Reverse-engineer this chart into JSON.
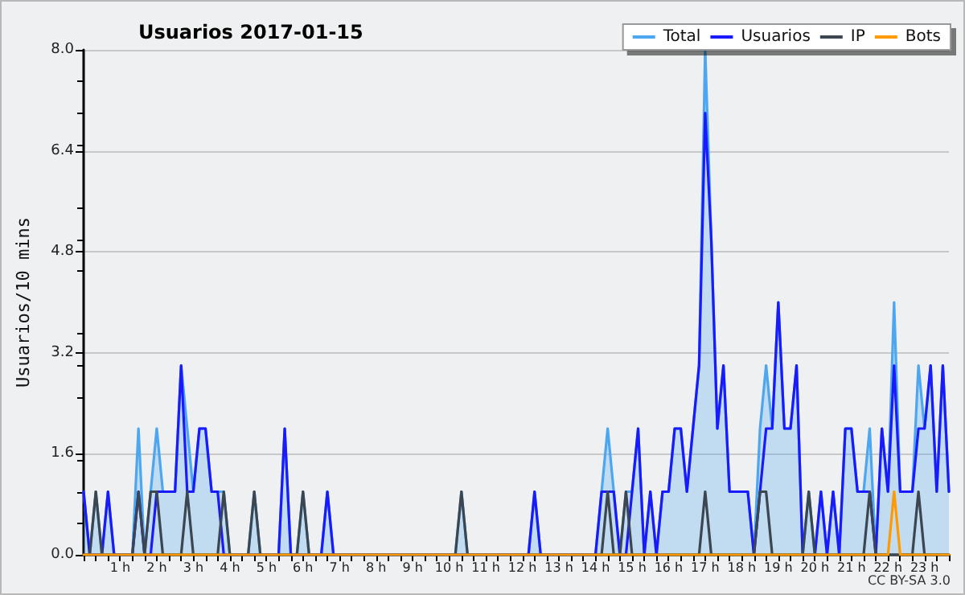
{
  "chart_data": {
    "type": "line",
    "title": "Usuarios 2017-01-15",
    "ylabel": "Usuarios/10 mins",
    "categories": [
      null,
      null,
      null,
      null,
      null,
      null,
      "1 h",
      null,
      null,
      null,
      null,
      null,
      "2 h",
      null,
      null,
      null,
      null,
      null,
      "3 h",
      null,
      null,
      null,
      null,
      null,
      "4 h",
      null,
      null,
      null,
      null,
      null,
      "5 h",
      null,
      null,
      null,
      null,
      null,
      "6 h",
      null,
      null,
      null,
      null,
      null,
      "7 h",
      null,
      null,
      null,
      null,
      null,
      "8 h",
      null,
      null,
      null,
      null,
      null,
      "9 h",
      null,
      null,
      null,
      null,
      null,
      "10 h",
      null,
      null,
      null,
      null,
      null,
      "11 h",
      null,
      null,
      null,
      null,
      null,
      "12 h",
      null,
      null,
      null,
      null,
      null,
      "13 h",
      null,
      null,
      null,
      null,
      null,
      "14 h",
      null,
      null,
      null,
      null,
      null,
      "15 h",
      null,
      null,
      null,
      null,
      null,
      "16 h",
      null,
      null,
      null,
      null,
      null,
      "17 h",
      null,
      null,
      null,
      null,
      null,
      "18 h",
      null,
      null,
      null,
      null,
      null,
      "19 h",
      null,
      null,
      null,
      null,
      null,
      "20 h",
      null,
      null,
      null,
      null,
      null,
      "21 h",
      null,
      null,
      null,
      null,
      null,
      "22 h",
      null,
      null,
      null,
      null,
      null,
      "23 h",
      null,
      null,
      null,
      null
    ],
    "series": [
      {
        "name": "Total",
        "type": "area",
        "color": "#4da6f0",
        "values": [
          1,
          0,
          1,
          0,
          1,
          0,
          0,
          0,
          0,
          2,
          0,
          1,
          2,
          1,
          1,
          1,
          3,
          2,
          1,
          2,
          2,
          1,
          1,
          1,
          0,
          0,
          0,
          0,
          1,
          0,
          0,
          0,
          0,
          2,
          0,
          0,
          1,
          0,
          0,
          0,
          1,
          0,
          0,
          0,
          0,
          0,
          0,
          0,
          0,
          0,
          0,
          0,
          0,
          0,
          0,
          0,
          0,
          0,
          0,
          0,
          0,
          0,
          1,
          0,
          0,
          0,
          0,
          0,
          0,
          0,
          0,
          0,
          0,
          0,
          1,
          0,
          0,
          0,
          0,
          0,
          0,
          0,
          0,
          0,
          0,
          1,
          2,
          1,
          0,
          1,
          1,
          2,
          0,
          1,
          0,
          1,
          1,
          2,
          2,
          1,
          2,
          3,
          8,
          5,
          2,
          3,
          1,
          1,
          1,
          1,
          0,
          2,
          3,
          2,
          4,
          2,
          2,
          3,
          0,
          1,
          0,
          1,
          0,
          1,
          0,
          2,
          2,
          1,
          1,
          2,
          0,
          2,
          1,
          4,
          1,
          1,
          1,
          3,
          2,
          3,
          1,
          3,
          1
        ]
      },
      {
        "name": "Usuarios",
        "color": "#1a1aff",
        "values": [
          1,
          0,
          0,
          0,
          1,
          0,
          0,
          0,
          0,
          1,
          0,
          0,
          1,
          1,
          1,
          1,
          3,
          1,
          1,
          2,
          2,
          1,
          1,
          0,
          0,
          0,
          0,
          0,
          0,
          0,
          0,
          0,
          0,
          2,
          0,
          0,
          0,
          0,
          0,
          0,
          1,
          0,
          0,
          0,
          0,
          0,
          0,
          0,
          0,
          0,
          0,
          0,
          0,
          0,
          0,
          0,
          0,
          0,
          0,
          0,
          0,
          0,
          0,
          0,
          0,
          0,
          0,
          0,
          0,
          0,
          0,
          0,
          0,
          0,
          1,
          0,
          0,
          0,
          0,
          0,
          0,
          0,
          0,
          0,
          0,
          1,
          1,
          1,
          0,
          0,
          1,
          2,
          0,
          1,
          0,
          1,
          1,
          2,
          2,
          1,
          2,
          3,
          7,
          5,
          2,
          3,
          1,
          1,
          1,
          1,
          0,
          1,
          2,
          2,
          4,
          2,
          2,
          3,
          0,
          0,
          0,
          1,
          0,
          1,
          0,
          2,
          2,
          1,
          1,
          1,
          0,
          2,
          1,
          3,
          1,
          1,
          1,
          2,
          2,
          3,
          1,
          3,
          1
        ]
      },
      {
        "name": "IP",
        "color": "#3c4650",
        "values": [
          0,
          0,
          1,
          0,
          0,
          0,
          0,
          0,
          0,
          1,
          0,
          1,
          1,
          0,
          0,
          0,
          0,
          1,
          0,
          0,
          0,
          0,
          0,
          1,
          0,
          0,
          0,
          0,
          1,
          0,
          0,
          0,
          0,
          0,
          0,
          0,
          1,
          0,
          0,
          0,
          0,
          0,
          0,
          0,
          0,
          0,
          0,
          0,
          0,
          0,
          0,
          0,
          0,
          0,
          0,
          0,
          0,
          0,
          0,
          0,
          0,
          0,
          1,
          0,
          0,
          0,
          0,
          0,
          0,
          0,
          0,
          0,
          0,
          0,
          0,
          0,
          0,
          0,
          0,
          0,
          0,
          0,
          0,
          0,
          0,
          0,
          1,
          0,
          0,
          1,
          0,
          0,
          0,
          0,
          0,
          0,
          0,
          0,
          0,
          0,
          0,
          0,
          1,
          0,
          0,
          0,
          0,
          0,
          0,
          0,
          0,
          1,
          1,
          0,
          0,
          0,
          0,
          0,
          0,
          1,
          0,
          0,
          0,
          0,
          0,
          0,
          0,
          0,
          0,
          1,
          0,
          0,
          0,
          0,
          0,
          0,
          0,
          1,
          0,
          0,
          0,
          0,
          0
        ]
      },
      {
        "name": "Bots",
        "color": "#ff9900",
        "values": [
          0,
          0,
          0,
          0,
          0,
          0,
          0,
          0,
          0,
          0,
          0,
          0,
          0,
          0,
          0,
          0,
          0,
          0,
          0,
          0,
          0,
          0,
          0,
          0,
          0,
          0,
          0,
          0,
          0,
          0,
          0,
          0,
          0,
          0,
          0,
          0,
          0,
          0,
          0,
          0,
          0,
          0,
          0,
          0,
          0,
          0,
          0,
          0,
          0,
          0,
          0,
          0,
          0,
          0,
          0,
          0,
          0,
          0,
          0,
          0,
          0,
          0,
          0,
          0,
          0,
          0,
          0,
          0,
          0,
          0,
          0,
          0,
          0,
          0,
          0,
          0,
          0,
          0,
          0,
          0,
          0,
          0,
          0,
          0,
          0,
          0,
          0,
          0,
          0,
          0,
          0,
          0,
          0,
          0,
          0,
          0,
          0,
          0,
          0,
          0,
          0,
          0,
          0,
          0,
          0,
          0,
          0,
          0,
          0,
          0,
          0,
          0,
          0,
          0,
          0,
          0,
          0,
          0,
          0,
          0,
          0,
          0,
          0,
          0,
          0,
          0,
          0,
          0,
          0,
          0,
          0,
          0,
          0,
          1,
          0,
          0,
          0,
          0,
          0,
          0,
          0,
          0,
          0
        ]
      }
    ],
    "ylim": [
      0,
      8
    ],
    "yticks": [
      {
        "value": 0,
        "label": "0.0"
      },
      1.6,
      3.2,
      4.8,
      6.4,
      {
        "value": 8,
        "label": "8.0"
      }
    ],
    "grid": "y",
    "legend": "top right",
    "marker": "none",
    "annotations": [
      "CC BY-SA 3.0"
    ]
  }
}
